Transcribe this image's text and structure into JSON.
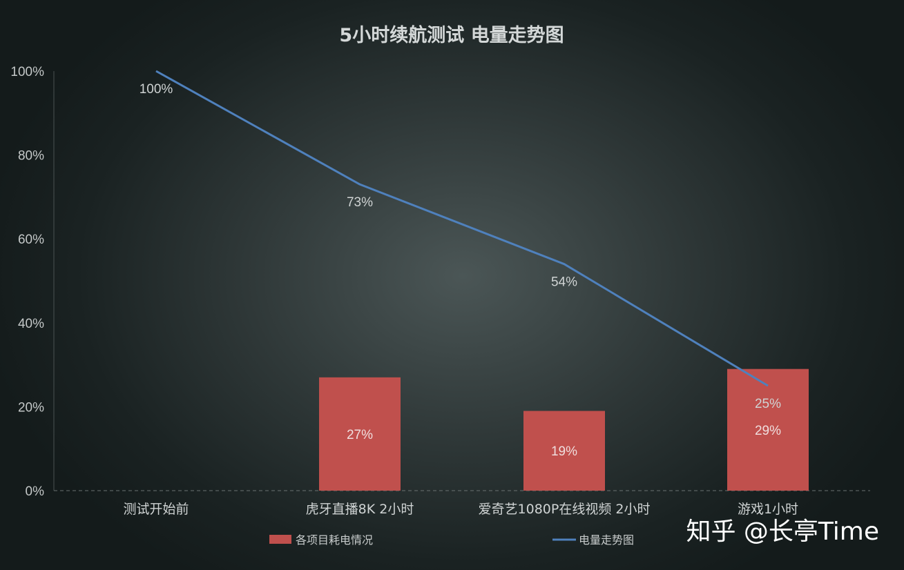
{
  "chart_data": {
    "type": "bar+line",
    "title": "5小时续航测试  电量走势图",
    "categories": [
      "测试开始前",
      "虎牙直播8K  2小时",
      "爱奇艺1080P在线视频 2小时",
      "游戏1小时"
    ],
    "y_ticks": [
      "0%",
      "20%",
      "40%",
      "60%",
      "80%",
      "100%"
    ],
    "ylim": [
      0,
      100
    ],
    "series": [
      {
        "name": "各项目耗电情况",
        "kind": "bar",
        "color": "#c0504d",
        "values": [
          null,
          27,
          19,
          29
        ],
        "labels": [
          "",
          "27%",
          "19%",
          "29%"
        ]
      },
      {
        "name": "电量走势图",
        "kind": "line",
        "color": "#4f81bd",
        "values": [
          100,
          73,
          54,
          25
        ],
        "labels": [
          "100%",
          "73%",
          "54%",
          "25%"
        ]
      }
    ],
    "grid": false,
    "legend_position": "bottom"
  },
  "watermark": "知乎 @长亭Time"
}
